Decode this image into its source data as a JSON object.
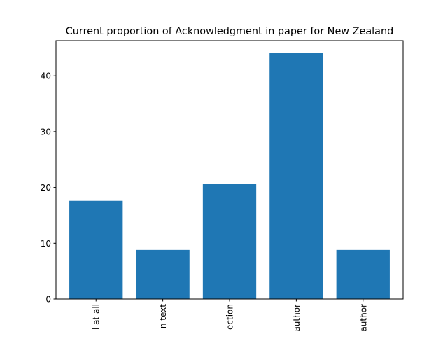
{
  "chart_data": {
    "type": "bar",
    "title": "Current proportion of Acknowledgment in paper for New Zealand",
    "xlabel": "",
    "ylabel": "",
    "categories": [
      "l at all",
      "n text",
      "ection",
      "author",
      "author"
    ],
    "values": [
      17.6,
      8.8,
      20.6,
      44.1,
      8.8
    ],
    "ylim": [
      0,
      46.3
    ],
    "yticks": [
      0,
      10,
      20,
      30,
      40
    ],
    "grid": false,
    "legend": "none",
    "bar_color": "#1f77b4",
    "axes_color": "#000000",
    "background": "#ffffff"
  }
}
